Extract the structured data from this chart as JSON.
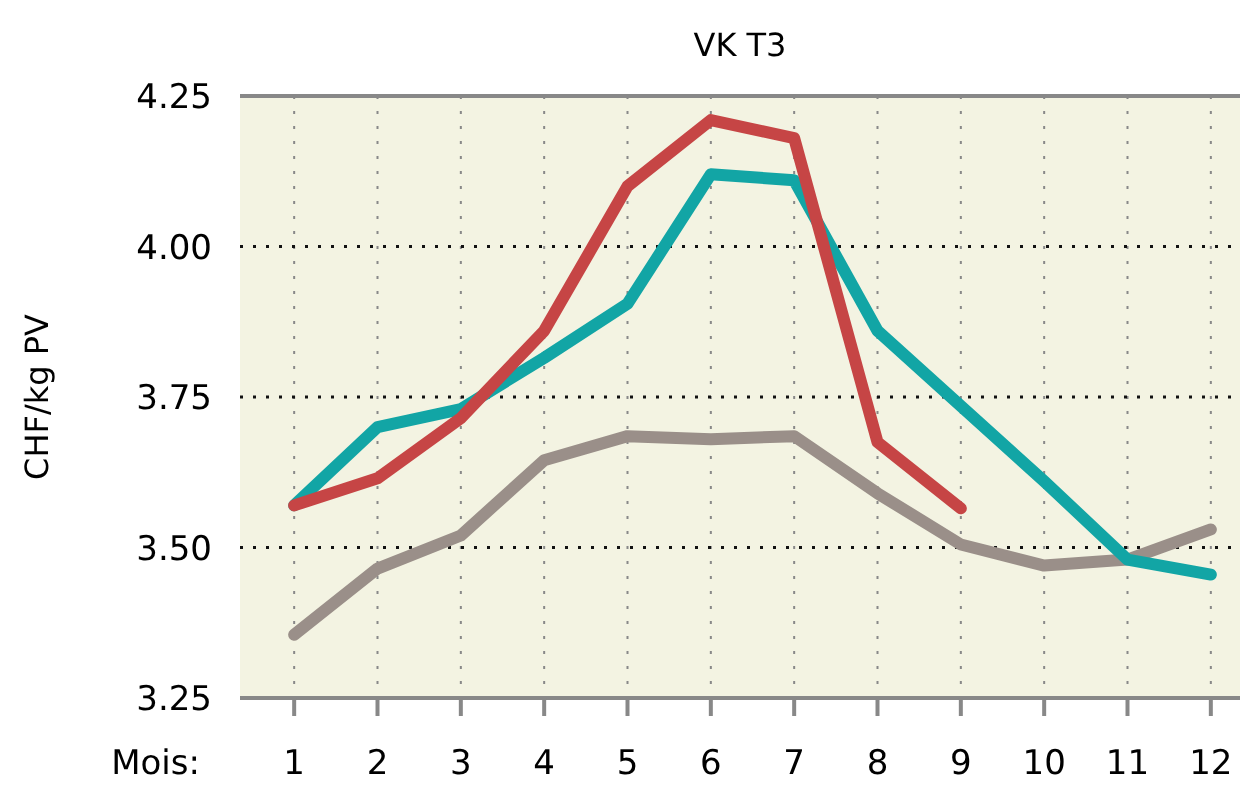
{
  "chart_data": {
    "type": "line",
    "title": "VK T3",
    "xlabel": "Mois:",
    "ylabel": "CHF/kg PV",
    "x": [
      1,
      2,
      3,
      4,
      5,
      6,
      7,
      8,
      9,
      10,
      11,
      12
    ],
    "xlim": [
      0.35,
      12.35
    ],
    "xticks": [
      1,
      2,
      3,
      4,
      5,
      6,
      7,
      8,
      9,
      10,
      11,
      12
    ],
    "ylim": [
      3.25,
      4.25
    ],
    "yticks": [
      {
        "value": 3.25,
        "label": "3.25"
      },
      {
        "value": 3.5,
        "label": "3.50"
      },
      {
        "value": 3.75,
        "label": "3.75"
      },
      {
        "value": 4,
        "label": "4.00"
      },
      {
        "value": 4.25,
        "label": "4.25"
      }
    ],
    "grid": true,
    "line_style": "solid",
    "marker": "none",
    "series": [
      {
        "color": "#9a8f89",
        "values": [
          3.355,
          3.465,
          3.52,
          3.645,
          3.685,
          3.68,
          3.685,
          3.59,
          3.505,
          3.47,
          3.48,
          3.53
        ]
      },
      {
        "color": "#12a5a5",
        "values": [
          3.57,
          3.7,
          3.73,
          3.815,
          3.905,
          4.12,
          4.11,
          3.86,
          3.735,
          3.61,
          3.48,
          3.455
        ]
      },
      {
        "color": "#c64545",
        "values": [
          3.57,
          3.615,
          3.715,
          3.86,
          4.1,
          4.21,
          4.18,
          3.675,
          3.565,
          null,
          null,
          null
        ]
      }
    ]
  }
}
